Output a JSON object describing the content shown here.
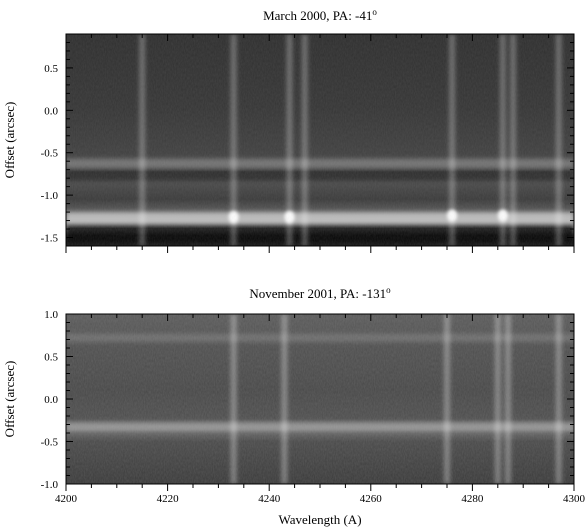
{
  "chart_data": [
    {
      "type": "heatmap",
      "title": "March 2000, PA: -41",
      "title_superscript": "o",
      "xlabel": "",
      "ylabel": "Offset (arcsec)",
      "xlim": [
        4200,
        4300
      ],
      "ylim": [
        -1.6,
        0.9
      ],
      "ytick_labels": [
        "0.5",
        "0.0",
        "-0.5",
        "-1.0",
        "-1.5"
      ],
      "ytick_values": [
        0.5,
        0.0,
        -0.5,
        -1.0,
        -1.5
      ],
      "colormap": "grayscale",
      "horizontal_bands": [
        {
          "center": -0.75,
          "halfwidth": 0.08,
          "level": -0.35
        },
        {
          "center": -0.62,
          "halfwidth": 0.05,
          "level": 0.25
        },
        {
          "center": -1.27,
          "halfwidth": 0.07,
          "level": 0.55
        },
        {
          "center": -1.45,
          "halfwidth": 0.12,
          "level": -0.8
        }
      ],
      "bright_features_wavelength": [
        4215,
        4233,
        4244,
        4247,
        4276,
        4286,
        4288,
        4297
      ],
      "compact_knots": [
        {
          "x": 4233,
          "y": -1.26
        },
        {
          "x": 4244,
          "y": -1.26
        },
        {
          "x": 4276,
          "y": -1.24
        },
        {
          "x": 4286,
          "y": -1.24
        }
      ]
    },
    {
      "type": "heatmap",
      "title": "November 2001, PA: -131",
      "title_superscript": "o",
      "xlabel": "Wavelength (A)",
      "ylabel": "Offset (arcsec)",
      "xlim": [
        4200,
        4300
      ],
      "ylim": [
        -1.0,
        1.0
      ],
      "xtick_labels": [
        "4200",
        "4220",
        "4240",
        "4260",
        "4280",
        "4300"
      ],
      "xtick_values": [
        4200,
        4220,
        4240,
        4260,
        4280,
        4300
      ],
      "ytick_labels": [
        "1.0",
        "0.5",
        "0.0",
        "-0.5",
        "-1.0"
      ],
      "ytick_values": [
        1.0,
        0.5,
        0.0,
        -0.5,
        -1.0
      ],
      "colormap": "grayscale",
      "horizontal_bands": [
        {
          "center": -0.32,
          "halfwidth": 0.05,
          "level": 0.3
        },
        {
          "center": 0.72,
          "halfwidth": 0.05,
          "level": 0.15
        }
      ],
      "bright_features_wavelength": [
        4233,
        4243,
        4275,
        4285,
        4287,
        4297
      ]
    }
  ]
}
